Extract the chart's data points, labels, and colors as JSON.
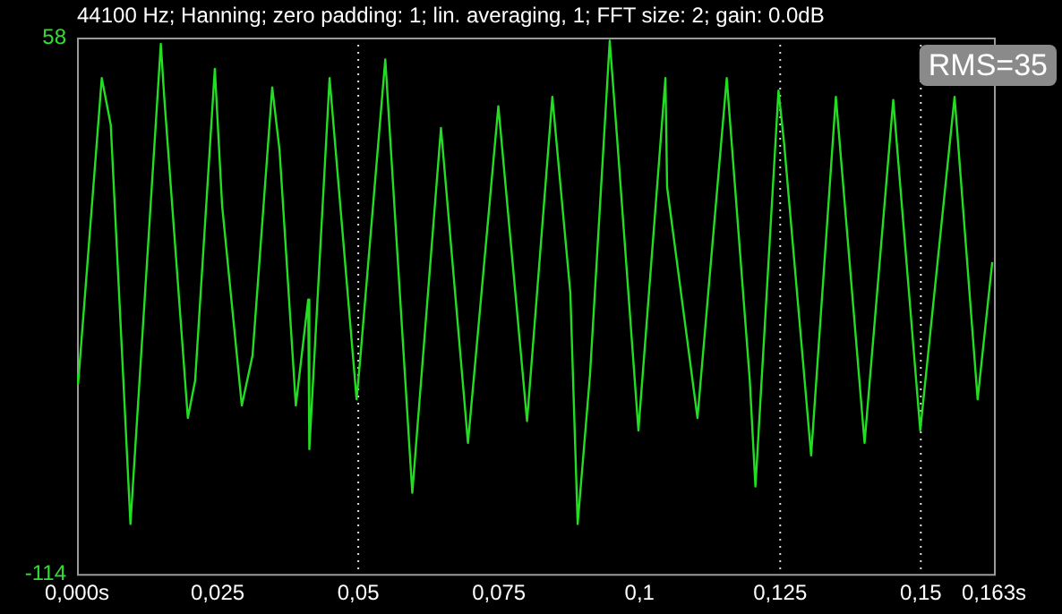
{
  "chart_data": {
    "type": "line",
    "title": "44100 Hz; Hanning; zero padding: 1; lin. averaging, 1; FFT size: 2; gain: 0.0dB",
    "annotations": [
      "RMS=35"
    ],
    "x": [
      0.0,
      0.0002,
      0.0044,
      0.006,
      0.0095,
      0.0149,
      0.0155,
      0.0197,
      0.021,
      0.0245,
      0.0258,
      0.0293,
      0.0312,
      0.0347,
      0.036,
      0.0389,
      0.0411,
      0.0413,
      0.0449,
      0.0497,
      0.0503,
      0.0548,
      0.0596,
      0.0647,
      0.0695,
      0.0749,
      0.08,
      0.0845,
      0.0877,
      0.089,
      0.0912,
      0.0947,
      0.096,
      0.0998,
      0.1046,
      0.1049,
      0.1103,
      0.1155,
      0.1196,
      0.1206,
      0.1247,
      0.1257,
      0.1305,
      0.1349,
      0.14,
      0.1451,
      0.1499,
      0.156,
      0.1601,
      0.1627
    ],
    "series": [
      {
        "color": "#22dd22",
        "values": [
          -50,
          -53,
          45,
          30,
          -98,
          56,
          39,
          -64,
          -52,
          48,
          4,
          -60,
          -44,
          42,
          22,
          -60,
          -26,
          -74,
          45,
          -58,
          -46,
          51,
          -88,
          29,
          -72,
          36,
          -65,
          39,
          -24,
          -98,
          -50,
          57,
          26,
          -68,
          45,
          10,
          -64,
          45,
          -52,
          -86,
          41,
          24,
          -76,
          39,
          -72,
          38,
          -68,
          39,
          -58,
          -14
        ]
      }
    ],
    "xlim": [
      0,
      0.163
    ],
    "xticks": [
      {
        "value": 0,
        "label": "0,000s"
      },
      {
        "value": 0.025,
        "label": "0,025"
      },
      {
        "value": 0.05,
        "label": "0,05"
      },
      {
        "value": 0.075,
        "label": "0,075"
      },
      {
        "value": 0.1,
        "label": "0,1"
      },
      {
        "value": 0.125,
        "label": "0,125"
      },
      {
        "value": 0.15,
        "label": "0,15"
      },
      {
        "value": 0.163,
        "label": "0,163s"
      }
    ],
    "ylim": [
      -114,
      58
    ],
    "yticks": [
      -114,
      58
    ],
    "ref_lines": [
      {
        "axis": "x",
        "value": 0.05,
        "line_style": "dotted",
        "color": "#dddddd"
      },
      {
        "axis": "x",
        "value": 0.125,
        "line_style": "dotted",
        "color": "#dddddd"
      },
      {
        "axis": "x",
        "value": 0.15,
        "line_style": "dotted",
        "color": "#dddddd"
      }
    ],
    "grid": false,
    "legend": false,
    "marker": "none",
    "line_style": "solid"
  }
}
